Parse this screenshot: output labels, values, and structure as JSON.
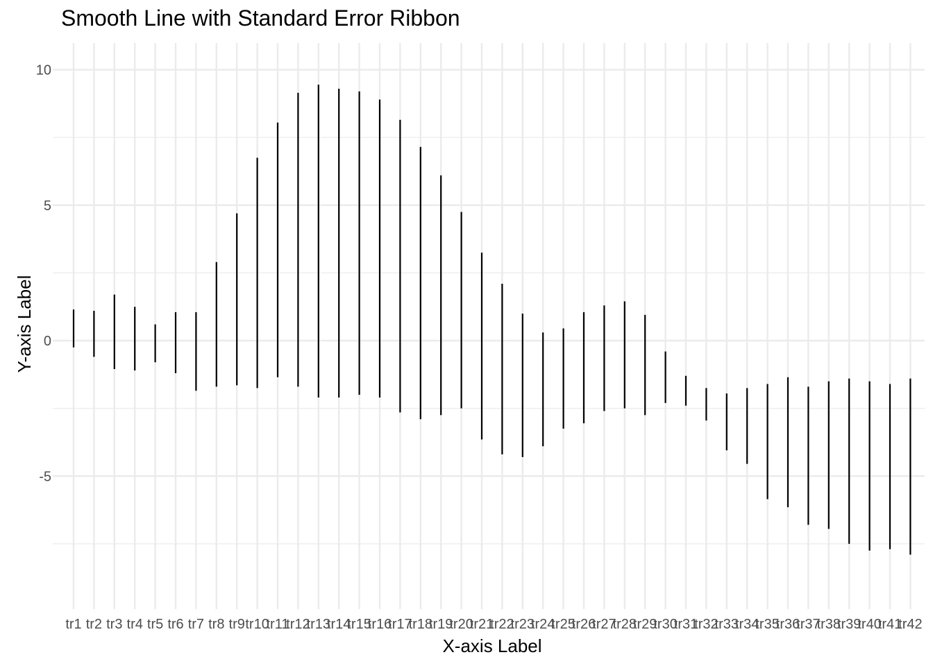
{
  "chart_data": {
    "type": "errorbar",
    "title": "Smooth Line with Standard Error Ribbon",
    "xlabel": "X-axis Label",
    "ylabel": "Y-axis Label",
    "ylim": [
      -9.5,
      10.95
    ],
    "yticks": [
      -5,
      0,
      5,
      10
    ],
    "grid": true,
    "categories": [
      "tr1",
      "tr2",
      "tr3",
      "tr4",
      "tr5",
      "tr6",
      "tr7",
      "tr8",
      "tr9",
      "tr10",
      "tr11",
      "tr12",
      "tr13",
      "tr14",
      "tr15",
      "tr16",
      "tr17",
      "tr18",
      "tr19",
      "tr20",
      "tr21",
      "tr22",
      "tr23",
      "tr24",
      "tr25",
      "tr26",
      "tr27",
      "tr28",
      "tr29",
      "tr30",
      "tr31",
      "tr32",
      "tr33",
      "tr34",
      "tr35",
      "tr36",
      "tr37",
      "tr38",
      "tr39",
      "tr40",
      "tr41",
      "tr42"
    ],
    "lower": [
      -0.25,
      -0.6,
      -1.05,
      -1.1,
      -0.8,
      -1.2,
      -1.85,
      -1.7,
      -1.65,
      -1.75,
      -1.35,
      -1.7,
      -2.1,
      -2.1,
      -2.0,
      -2.1,
      -2.65,
      -2.9,
      -2.75,
      -2.5,
      -3.65,
      -4.2,
      -4.3,
      -3.9,
      -3.25,
      -3.05,
      -2.6,
      -2.5,
      -2.75,
      -2.3,
      -2.4,
      -2.95,
      -4.05,
      -4.55,
      -5.85,
      -6.15,
      -6.8,
      -6.95,
      -7.5,
      -7.75,
      -7.7,
      -7.9
    ],
    "upper": [
      1.15,
      1.1,
      1.7,
      1.25,
      0.6,
      1.05,
      1.05,
      2.9,
      4.7,
      6.75,
      8.05,
      9.15,
      9.45,
      9.3,
      9.2,
      8.9,
      8.15,
      7.15,
      6.1,
      4.75,
      3.25,
      2.1,
      1.0,
      0.3,
      0.45,
      1.05,
      1.3,
      1.45,
      0.95,
      -0.4,
      -1.3,
      -1.75,
      -1.95,
      -1.75,
      -1.6,
      -1.35,
      -1.7,
      -1.5,
      -1.4,
      -1.5,
      -1.6,
      -1.4
    ]
  }
}
